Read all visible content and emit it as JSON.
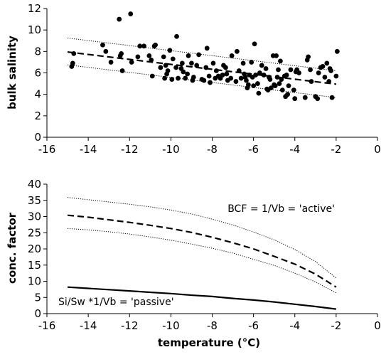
{
  "chart_data": [
    {
      "type": "scatter",
      "xlabel": "",
      "ylabel": "bulk salinity",
      "xlim": [
        -16,
        0
      ],
      "ylim": [
        0,
        12
      ],
      "xticks": [
        "-16",
        "-14",
        "-12",
        "-10",
        "-8",
        "-6",
        "-4",
        "-2",
        "0"
      ],
      "yticks": [
        "0",
        "2",
        "4",
        "6",
        "8",
        "10",
        "12"
      ],
      "grid": false,
      "series": [
        {
          "style": "points",
          "points": [
            [
              -14.8,
              6.6
            ],
            [
              -14.75,
              6.9
            ],
            [
              -14.7,
              7.8
            ],
            [
              -13.3,
              8.6
            ],
            [
              -13.15,
              8.0
            ],
            [
              -12.9,
              7.0
            ],
            [
              -12.5,
              11.0
            ],
            [
              -12.45,
              7.6
            ],
            [
              -12.4,
              7.8
            ],
            [
              -12.35,
              6.2
            ],
            [
              -11.95,
              11.5
            ],
            [
              -11.9,
              7.0
            ],
            [
              -11.6,
              7.5
            ],
            [
              -11.5,
              8.5
            ],
            [
              -11.3,
              8.5
            ],
            [
              -11.05,
              7.6
            ],
            [
              -10.95,
              7.2
            ],
            [
              -10.9,
              5.7
            ],
            [
              -10.8,
              8.5
            ],
            [
              -10.75,
              8.6
            ],
            [
              -10.5,
              6.5
            ],
            [
              -10.35,
              7.5
            ],
            [
              -10.3,
              5.5
            ],
            [
              -10.25,
              6.7
            ],
            [
              -10.2,
              5.9
            ],
            [
              -10.15,
              6.2
            ],
            [
              -10.05,
              8.1
            ],
            [
              -9.95,
              5.4
            ],
            [
              -9.9,
              7.3
            ],
            [
              -9.75,
              6.5
            ],
            [
              -9.72,
              9.4
            ],
            [
              -9.65,
              5.5
            ],
            [
              -9.5,
              6.4
            ],
            [
              -9.45,
              6.9
            ],
            [
              -9.4,
              6.1
            ],
            [
              -9.3,
              5.5
            ],
            [
              -9.2,
              5.9
            ],
            [
              -9.15,
              7.6
            ],
            [
              -9.0,
              6.9
            ],
            [
              -8.95,
              5.3
            ],
            [
              -8.9,
              5.6
            ],
            [
              -8.75,
              6.7
            ],
            [
              -8.65,
              7.7
            ],
            [
              -8.5,
              5.4
            ],
            [
              -8.4,
              5.3
            ],
            [
              -8.3,
              6.5
            ],
            [
              -8.25,
              8.3
            ],
            [
              -8.15,
              5.7
            ],
            [
              -8.1,
              5.1
            ],
            [
              -7.95,
              6.9
            ],
            [
              -7.85,
              5.5
            ],
            [
              -7.8,
              6.2
            ],
            [
              -7.7,
              5.7
            ],
            [
              -7.6,
              5.5
            ],
            [
              -7.5,
              5.8
            ],
            [
              -7.45,
              6.7
            ],
            [
              -7.35,
              6.5
            ],
            [
              -7.3,
              5.9
            ],
            [
              -7.25,
              5.3
            ],
            [
              -7.1,
              5.5
            ],
            [
              -7.05,
              7.6
            ],
            [
              -6.85,
              5.2
            ],
            [
              -6.8,
              8.0
            ],
            [
              -6.7,
              6.2
            ],
            [
              -6.6,
              5.5
            ],
            [
              -6.5,
              6.9
            ],
            [
              -6.45,
              5.9
            ],
            [
              -6.4,
              5.6
            ],
            [
              -6.35,
              5.3
            ],
            [
              -6.3,
              4.6
            ],
            [
              -6.25,
              4.9
            ],
            [
              -6.2,
              5.8
            ],
            [
              -6.1,
              7.0
            ],
            [
              -6.05,
              5.6
            ],
            [
              -6.0,
              4.8
            ],
            [
              -5.95,
              8.7
            ],
            [
              -5.9,
              5.8
            ],
            [
              -5.8,
              5.0
            ],
            [
              -5.75,
              4.1
            ],
            [
              -5.7,
              6.0
            ],
            [
              -5.6,
              6.7
            ],
            [
              -5.5,
              5.8
            ],
            [
              -5.4,
              6.4
            ],
            [
              -5.35,
              4.5
            ],
            [
              -5.3,
              4.4
            ],
            [
              -5.25,
              5.6
            ],
            [
              -5.2,
              5.4
            ],
            [
              -5.15,
              4.6
            ],
            [
              -5.05,
              7.6
            ],
            [
              -5.0,
              4.9
            ],
            [
              -4.95,
              4.8
            ],
            [
              -4.9,
              7.6
            ],
            [
              -4.85,
              5.6
            ],
            [
              -4.8,
              6.3
            ],
            [
              -4.75,
              5.0
            ],
            [
              -4.7,
              7.1
            ],
            [
              -4.65,
              5.4
            ],
            [
              -4.6,
              4.4
            ],
            [
              -4.5,
              5.7
            ],
            [
              -4.45,
              3.8
            ],
            [
              -4.4,
              5.8
            ],
            [
              -4.35,
              4.0
            ],
            [
              -4.3,
              4.8
            ],
            [
              -4.2,
              6.3
            ],
            [
              -4.05,
              4.4
            ],
            [
              -4.0,
              3.6
            ],
            [
              -3.95,
              6.1
            ],
            [
              -3.9,
              6.3
            ],
            [
              -3.8,
              6.0
            ],
            [
              -3.5,
              3.7
            ],
            [
              -3.4,
              7.2
            ],
            [
              -3.35,
              7.5
            ],
            [
              -3.25,
              6.3
            ],
            [
              -3.2,
              5.2
            ],
            [
              -3.0,
              3.8
            ],
            [
              -2.9,
              3.6
            ],
            [
              -2.85,
              6.0
            ],
            [
              -2.75,
              6.5
            ],
            [
              -2.65,
              6.6
            ],
            [
              -2.55,
              5.6
            ],
            [
              -2.45,
              6.9
            ],
            [
              -2.35,
              5.2
            ],
            [
              -2.3,
              6.4
            ],
            [
              -2.25,
              6.2
            ],
            [
              -2.2,
              3.7
            ],
            [
              -2.0,
              5.7
            ],
            [
              -1.95,
              8.0
            ]
          ]
        },
        {
          "style": "dashed",
          "points": [
            [
              -15,
              7.95
            ],
            [
              -2,
              4.95
            ]
          ]
        },
        {
          "style": "dotted",
          "points": [
            [
              -15,
              9.25
            ],
            [
              -2,
              6.2
            ]
          ]
        },
        {
          "style": "dotted",
          "points": [
            [
              -15,
              6.75
            ],
            [
              -2,
              3.7
            ]
          ]
        }
      ]
    },
    {
      "type": "line",
      "xlabel": "temperature (°C)",
      "ylabel": "conc. factor",
      "xlim": [
        -16,
        0
      ],
      "ylim": [
        0,
        40
      ],
      "xticks": [
        "-16",
        "-14",
        "-12",
        "-10",
        "-8",
        "-6",
        "-4",
        "-2",
        "0"
      ],
      "yticks": [
        "0",
        "5",
        "10",
        "15",
        "20",
        "25",
        "30",
        "35",
        "40"
      ],
      "grid": false,
      "annotations": [
        "BCF = 1/Vb = 'active'",
        "Si/Sw *1/Vb = 'passive'"
      ],
      "series": [
        {
          "style": "dashed",
          "x": [
            -15,
            -14,
            -13,
            -12,
            -11,
            -10,
            -9,
            -8,
            -7,
            -6,
            -5,
            -4,
            -3,
            -2
          ],
          "y": [
            30.4,
            29.8,
            29.0,
            28.2,
            27.3,
            26.3,
            25.1,
            23.6,
            21.9,
            20.0,
            17.7,
            15.3,
            12.2,
            8.2
          ]
        },
        {
          "style": "dotted",
          "x": [
            -15,
            -14,
            -13,
            -12,
            -11,
            -10,
            -9,
            -8,
            -7,
            -6,
            -5,
            -4,
            -3,
            -2
          ],
          "y": [
            35.9,
            35.2,
            34.5,
            33.8,
            33.0,
            32.0,
            30.8,
            29.2,
            27.4,
            25.2,
            22.8,
            19.8,
            16.1,
            11.0
          ]
        },
        {
          "style": "dotted",
          "x": [
            -15,
            -14,
            -13,
            -12,
            -11,
            -10,
            -9,
            -8,
            -7,
            -6,
            -5,
            -4,
            -3,
            -2
          ],
          "y": [
            26.3,
            25.9,
            25.3,
            24.6,
            23.7,
            22.7,
            21.5,
            20.2,
            18.7,
            16.8,
            14.9,
            12.5,
            9.8,
            6.4
          ]
        },
        {
          "style": "solid",
          "x": [
            -15,
            -14,
            -13,
            -12,
            -11,
            -10,
            -9,
            -8,
            -7,
            -6,
            -5,
            -4,
            -3,
            -2
          ],
          "y": [
            8.2,
            7.8,
            7.4,
            7.0,
            6.6,
            6.2,
            5.7,
            5.3,
            4.7,
            4.2,
            3.6,
            2.9,
            2.2,
            1.4
          ]
        }
      ]
    }
  ]
}
